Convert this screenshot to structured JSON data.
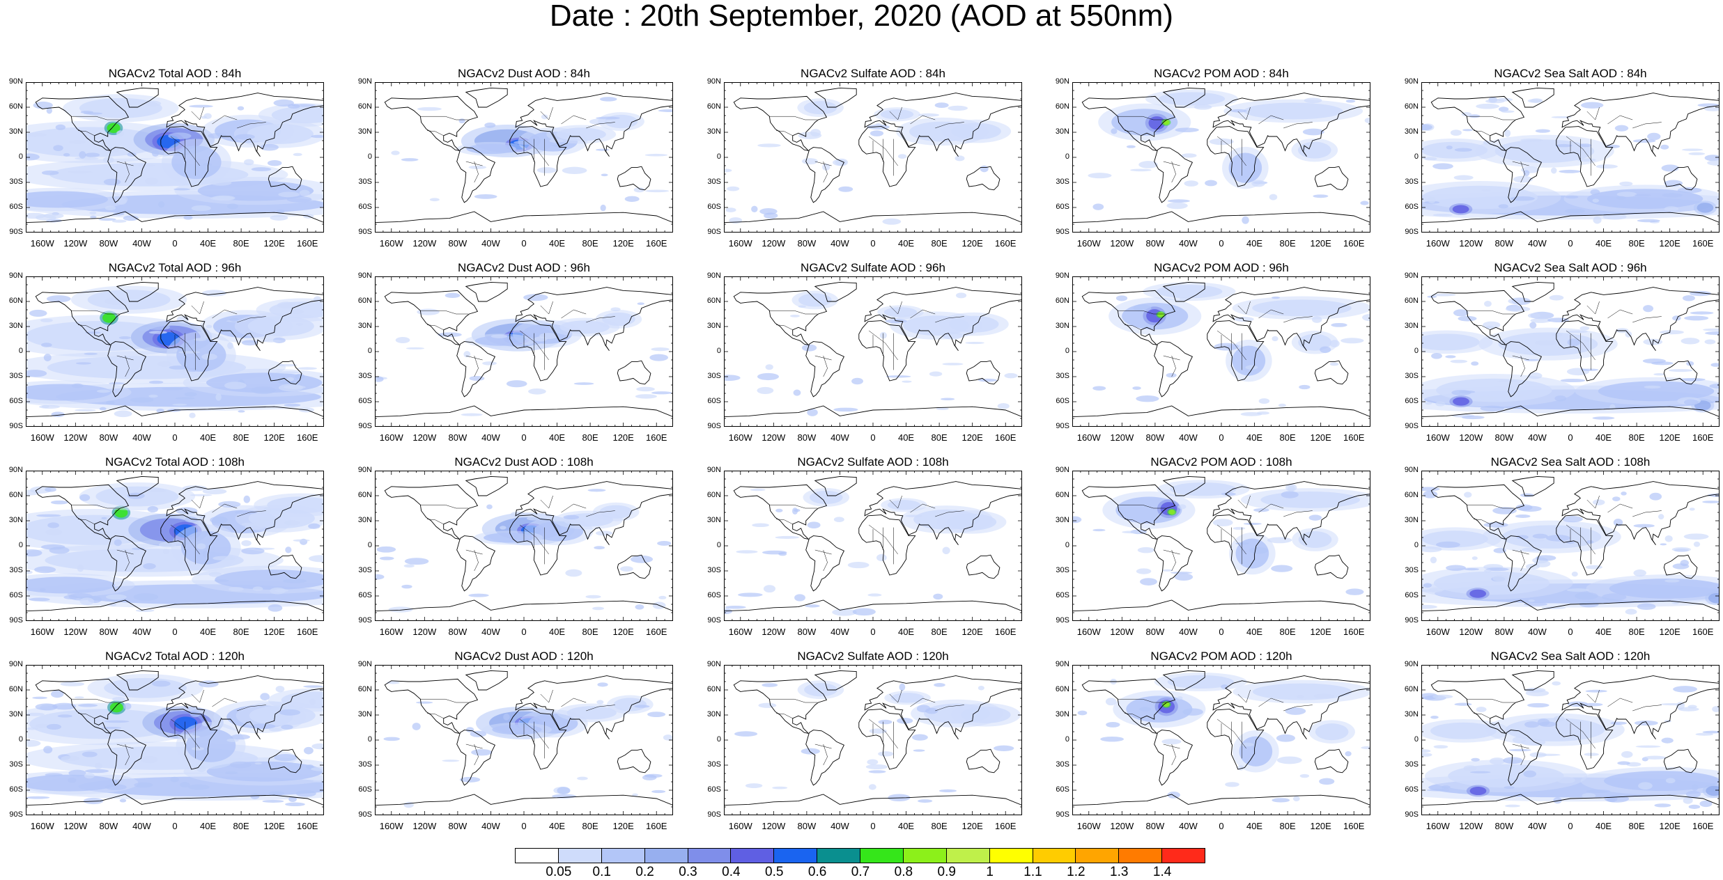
{
  "title": "Date : 20th September, 2020 (AOD at 550nm)",
  "lat_labels": [
    "90N",
    "60N",
    "30N",
    "0",
    "30S",
    "60S",
    "90S"
  ],
  "lon_labels": [
    "160W",
    "120W",
    "80W",
    "40W",
    "0",
    "40E",
    "80E",
    "120E",
    "160E"
  ],
  "panels": [
    {
      "title": "NGACv2 Total AOD : 84h",
      "species": "total",
      "hour": 84
    },
    {
      "title": "NGACv2 Dust AOD : 84h",
      "species": "dust",
      "hour": 84
    },
    {
      "title": "NGACv2 Sulfate AOD : 84h",
      "species": "sulfate",
      "hour": 84
    },
    {
      "title": "NGACv2 POM AOD : 84h",
      "species": "pom",
      "hour": 84
    },
    {
      "title": "NGACv2 Sea Salt AOD : 84h",
      "species": "seasalt",
      "hour": 84
    },
    {
      "title": "NGACv2 Total AOD : 96h",
      "species": "total",
      "hour": 96
    },
    {
      "title": "NGACv2 Dust AOD : 96h",
      "species": "dust",
      "hour": 96
    },
    {
      "title": "NGACv2 Sulfate AOD : 96h",
      "species": "sulfate",
      "hour": 96
    },
    {
      "title": "NGACv2 POM AOD : 96h",
      "species": "pom",
      "hour": 96
    },
    {
      "title": "NGACv2 Sea Salt AOD : 96h",
      "species": "seasalt",
      "hour": 96
    },
    {
      "title": "NGACv2 Total AOD : 108h",
      "species": "total",
      "hour": 108
    },
    {
      "title": "NGACv2 Dust AOD : 108h",
      "species": "dust",
      "hour": 108
    },
    {
      "title": "NGACv2 Sulfate AOD : 108h",
      "species": "sulfate",
      "hour": 108
    },
    {
      "title": "NGACv2 POM AOD : 108h",
      "species": "pom",
      "hour": 108
    },
    {
      "title": "NGACv2 Sea Salt AOD : 108h",
      "species": "seasalt",
      "hour": 108
    },
    {
      "title": "NGACv2 Total AOD : 120h",
      "species": "total",
      "hour": 120
    },
    {
      "title": "NGACv2 Dust AOD : 120h",
      "species": "dust",
      "hour": 120
    },
    {
      "title": "NGACv2 Sulfate AOD : 120h",
      "species": "sulfate",
      "hour": 120
    },
    {
      "title": "NGACv2 POM AOD : 120h",
      "species": "pom",
      "hour": 120
    },
    {
      "title": "NGACv2 Sea Salt  AOD : 120h",
      "species": "seasalt",
      "hour": 120
    }
  ],
  "colorbar": {
    "colors": [
      "#ffffff",
      "#cfdcfb",
      "#b3c6f8",
      "#97afef",
      "#7f8eea",
      "#5f5fe3",
      "#1a64f0",
      "#0a8f8f",
      "#35e61a",
      "#8cf01a",
      "#bff04a",
      "#ffff00",
      "#ffcc00",
      "#ffa500",
      "#ff7b00",
      "#ff2a1a"
    ],
    "labels": [
      "0.05",
      "0.1",
      "0.2",
      "0.3",
      "0.4",
      "0.5",
      "0.6",
      "0.7",
      "0.8",
      "0.9",
      "1",
      "1.1",
      "1.2",
      "1.3",
      "1.4"
    ]
  },
  "styles": {
    "land_outline": "#000000",
    "fill_light": "#dfe6fd",
    "fill_mid": "#b3c6f8",
    "fill_dark": "#8aa3f2"
  }
}
